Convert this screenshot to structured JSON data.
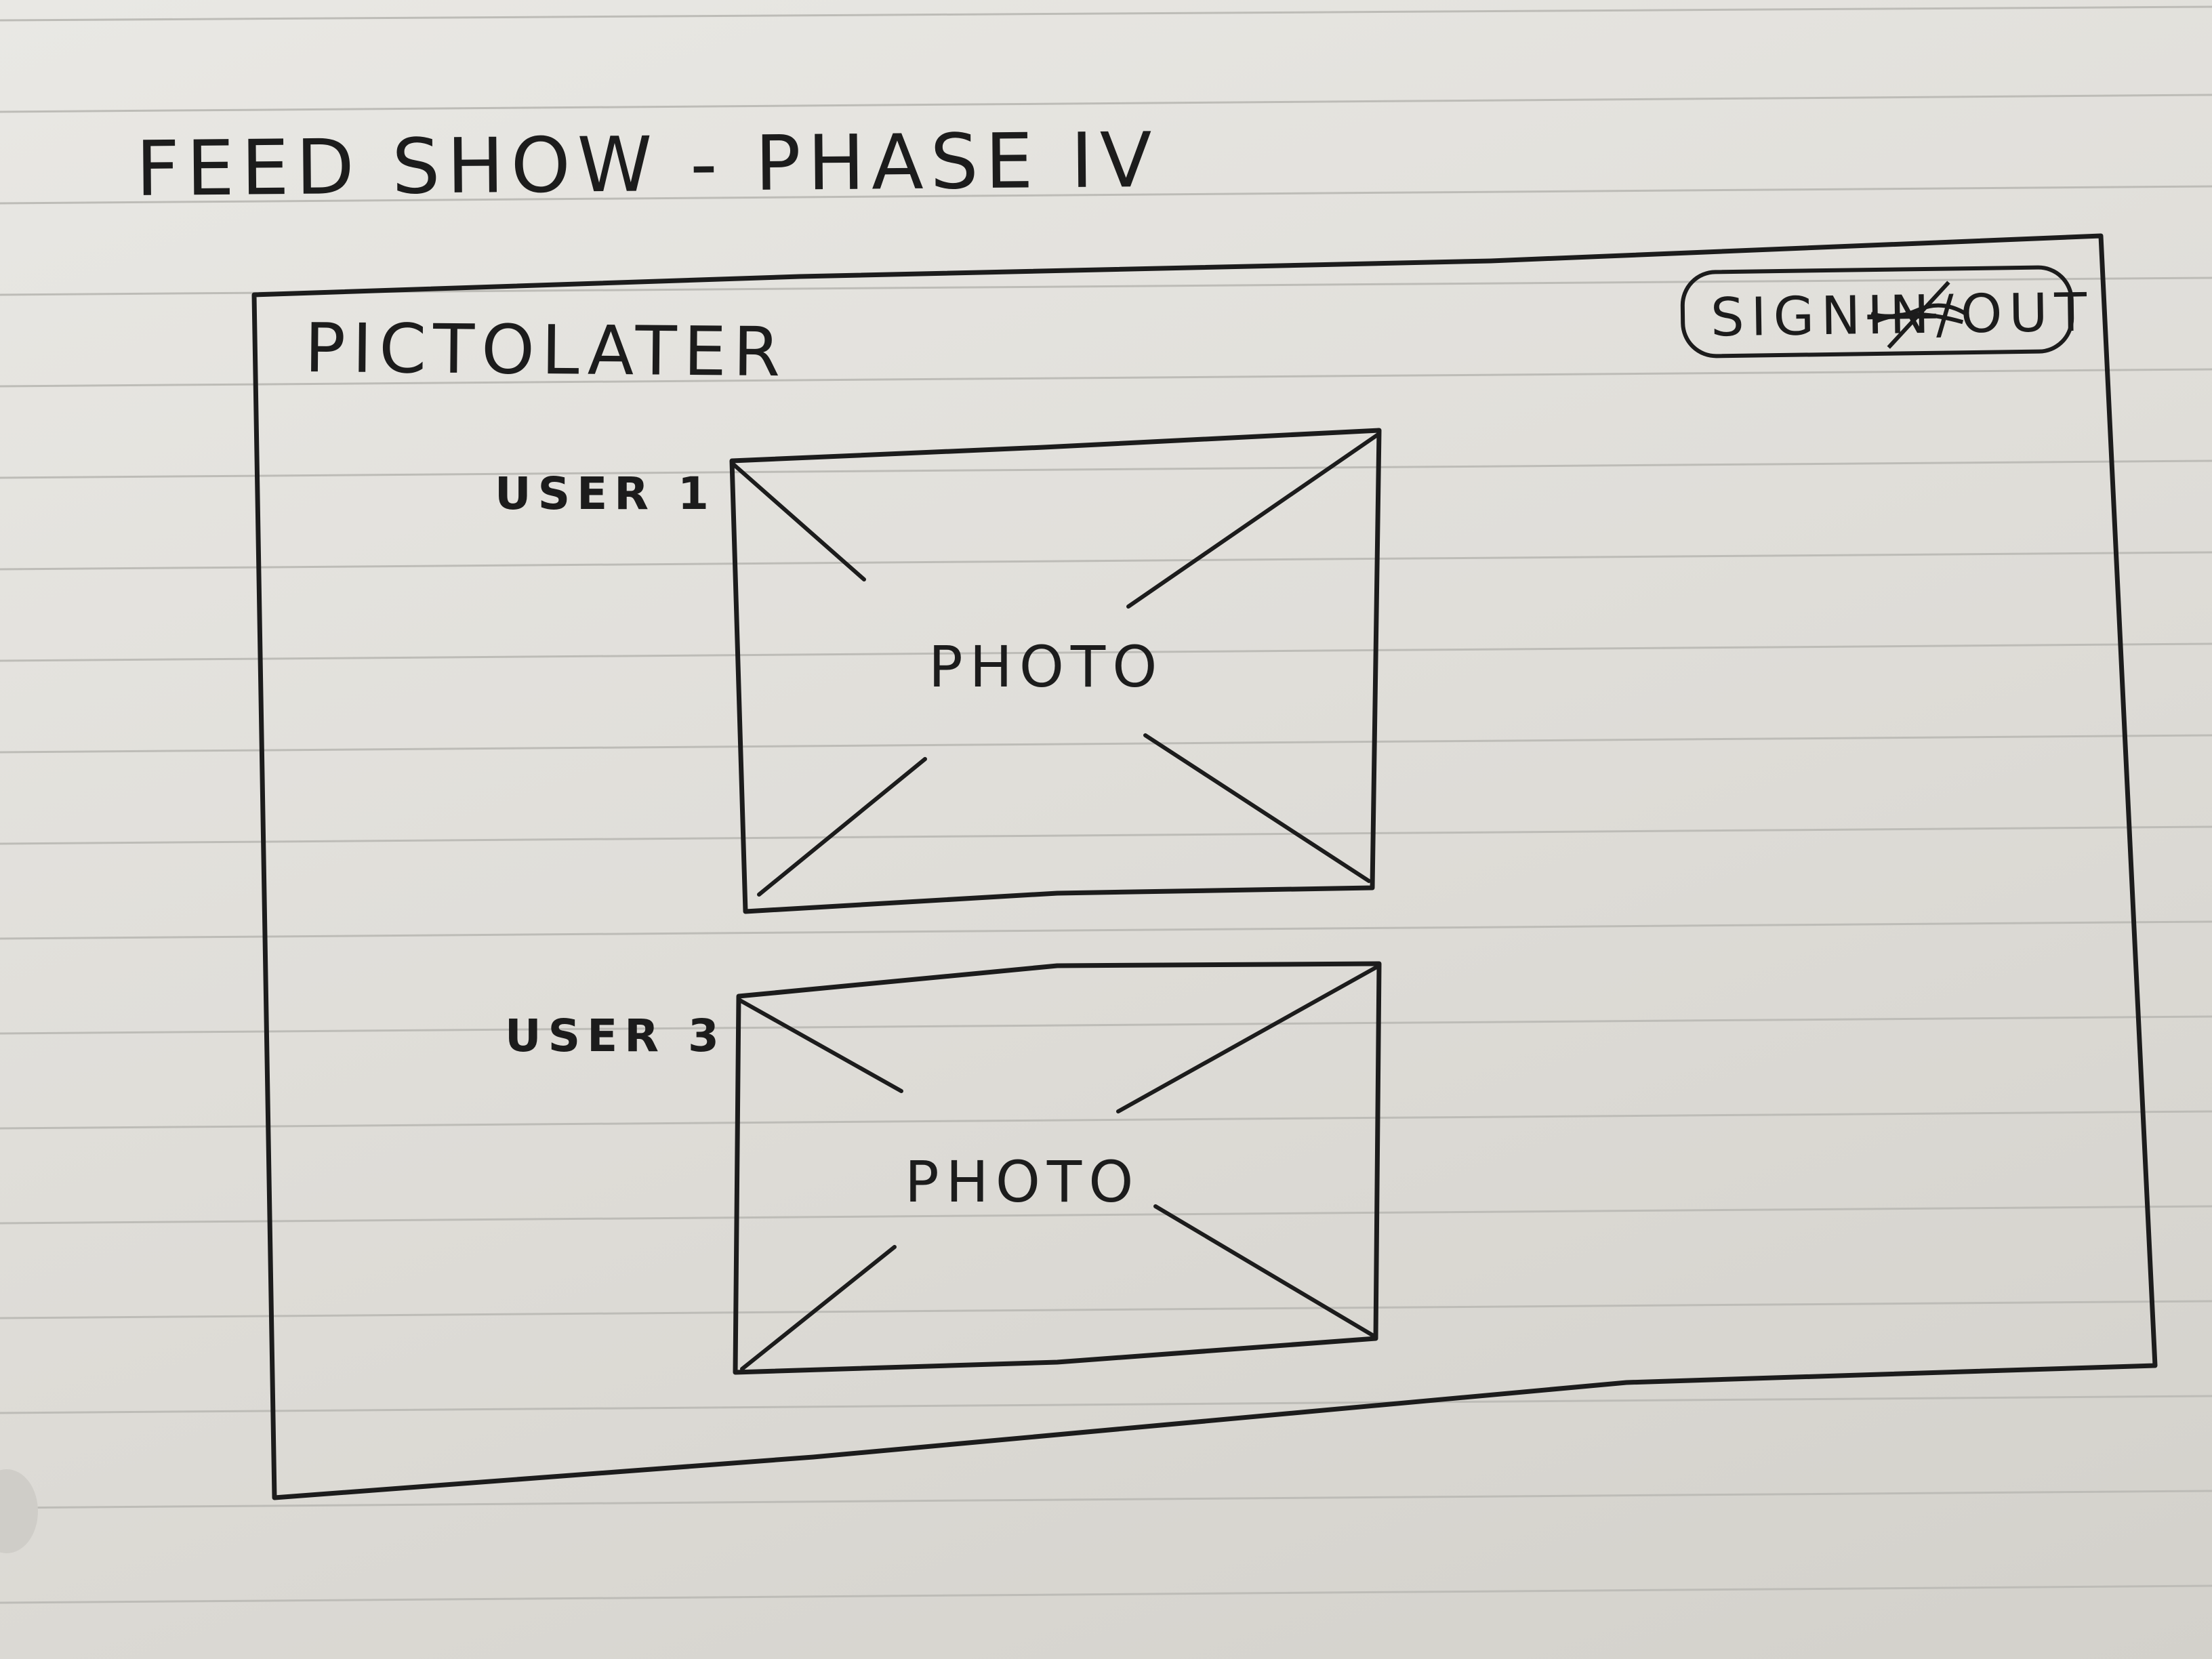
{
  "sheet": {
    "title": "FEED SHOW - PHASE IV"
  },
  "app": {
    "logo": "PICTOLATER",
    "signout": {
      "sign_text": "SIGN",
      "crossed_text": "IN",
      "out_text": "/OUT"
    }
  },
  "feed": [
    {
      "user": "USER 1",
      "photo_label": "PHOTO"
    },
    {
      "user": "USER 3",
      "photo_label": "PHOTO"
    }
  ]
}
